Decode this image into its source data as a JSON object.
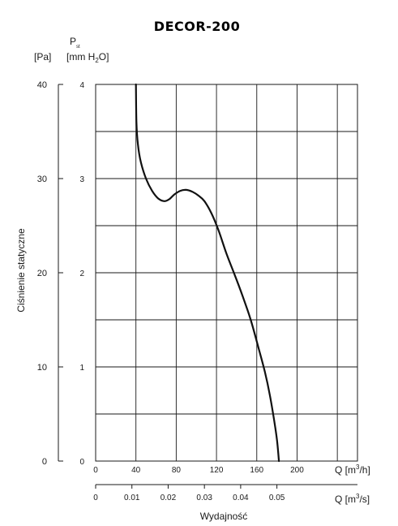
{
  "title": "DECOR-200",
  "ylabel": "Ciśnienie statyczne",
  "xlabel": "Wydajność",
  "p_symbol": "P",
  "p_sub": "st",
  "unit_pa": "[Pa]",
  "unit_mmh2o": "[mm H",
  "unit_mmh2o_sub": "2",
  "unit_mmh2o_end": "O]",
  "unit_m3h": "Q [m",
  "unit_m3h_sup": "3",
  "unit_m3h_end": "/h]",
  "unit_m3s": "Q [m",
  "unit_m3s_sup": "3",
  "unit_m3s_end": "/s]",
  "chart_data": {
    "type": "line",
    "title": "DECOR-200",
    "xlabel": "Wydajność",
    "ylabel": "Ciśnienie statyczne",
    "x_unit": "m3/h",
    "y_unit": "Pa",
    "xlim": [
      0,
      260
    ],
    "ylim": [
      0,
      40
    ],
    "grid": true,
    "x_ticks_m3h": [
      "0",
      "40",
      "80",
      "120",
      "160",
      "200"
    ],
    "x_ticks_m3s": [
      "0",
      "0.01",
      "0.02",
      "0.03",
      "0.04",
      "0.05"
    ],
    "x_ticks_m3s_values": [
      0,
      0.01,
      0.02,
      0.03,
      0.04,
      0.05
    ],
    "y_ticks_pa": [
      "0",
      "10",
      "20",
      "30",
      "40"
    ],
    "y_ticks_mmh2o": [
      "0",
      "1",
      "2",
      "3",
      "4"
    ],
    "series": [
      {
        "x": [
          40,
          40.5,
          42,
          45,
          50,
          56,
          62,
          68,
          73,
          78,
          84,
          90,
          96,
          102,
          108,
          115,
          122,
          130,
          138,
          146,
          154,
          162,
          168,
          173,
          177,
          180,
          182
        ],
        "y": [
          40,
          36,
          33.6,
          31.7,
          30.0,
          28.7,
          27.9,
          27.6,
          27.8,
          28.3,
          28.7,
          28.8,
          28.6,
          28.2,
          27.6,
          26.3,
          24.5,
          22.0,
          19.8,
          17.5,
          15.0,
          11.9,
          9.5,
          7.0,
          4.5,
          2.3,
          0
        ]
      }
    ]
  }
}
